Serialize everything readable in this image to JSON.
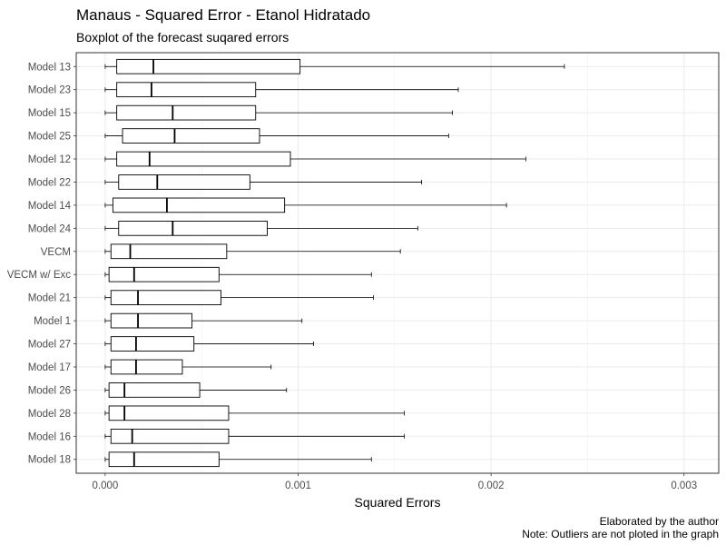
{
  "chart_data": {
    "type": "boxplot",
    "title": "Manaus - Squared Error - Etanol Hidratado",
    "subtitle": "Boxplot of the forecast suqared errors",
    "xlabel": "Squared Errors",
    "ylabel": "",
    "xlim": [
      -0.00015,
      0.00318
    ],
    "x_ticks": [
      0.0,
      0.001,
      0.002,
      0.003
    ],
    "x_tick_labels": [
      "0.000",
      "0.001",
      "0.002",
      "0.003"
    ],
    "grid": true,
    "captions": [
      "Elaborated by the author",
      "Note: Outliers are not ploted in the graph"
    ],
    "series": [
      {
        "label": "Model 13",
        "whisker_low": 0.0,
        "q1": 6e-05,
        "median": 0.00025,
        "q3": 0.00101,
        "whisker_high": 0.00238
      },
      {
        "label": "Model 23",
        "whisker_low": 0.0,
        "q1": 6e-05,
        "median": 0.00024,
        "q3": 0.00078,
        "whisker_high": 0.00183
      },
      {
        "label": "Model 15",
        "whisker_low": 0.0,
        "q1": 6e-05,
        "median": 0.00035,
        "q3": 0.00078,
        "whisker_high": 0.0018
      },
      {
        "label": "Model 25",
        "whisker_low": 0.0,
        "q1": 9e-05,
        "median": 0.00036,
        "q3": 0.0008,
        "whisker_high": 0.00178
      },
      {
        "label": "Model 12",
        "whisker_low": 0.0,
        "q1": 6e-05,
        "median": 0.00023,
        "q3": 0.00096,
        "whisker_high": 0.00218
      },
      {
        "label": "Model 22",
        "whisker_low": 0.0,
        "q1": 7e-05,
        "median": 0.00027,
        "q3": 0.00075,
        "whisker_high": 0.00164
      },
      {
        "label": "Model 14",
        "whisker_low": 0.0,
        "q1": 4e-05,
        "median": 0.00032,
        "q3": 0.00093,
        "whisker_high": 0.00208
      },
      {
        "label": "Model 24",
        "whisker_low": 0.0,
        "q1": 7e-05,
        "median": 0.00035,
        "q3": 0.00084,
        "whisker_high": 0.00162
      },
      {
        "label": "VECM",
        "whisker_low": 0.0,
        "q1": 3e-05,
        "median": 0.00013,
        "q3": 0.00063,
        "whisker_high": 0.00153
      },
      {
        "label": "VECM w/ Exc",
        "whisker_low": 0.0,
        "q1": 2e-05,
        "median": 0.00015,
        "q3": 0.00059,
        "whisker_high": 0.00138
      },
      {
        "label": "Model 21",
        "whisker_low": 0.0,
        "q1": 3e-05,
        "median": 0.00017,
        "q3": 0.0006,
        "whisker_high": 0.00139
      },
      {
        "label": "Model 1",
        "whisker_low": 0.0,
        "q1": 3e-05,
        "median": 0.00017,
        "q3": 0.00045,
        "whisker_high": 0.00102
      },
      {
        "label": "Model 27",
        "whisker_low": 0.0,
        "q1": 3e-05,
        "median": 0.00016,
        "q3": 0.00046,
        "whisker_high": 0.00108
      },
      {
        "label": "Model 17",
        "whisker_low": 0.0,
        "q1": 3e-05,
        "median": 0.00016,
        "q3": 0.0004,
        "whisker_high": 0.00086
      },
      {
        "label": "Model 26",
        "whisker_low": 0.0,
        "q1": 2e-05,
        "median": 0.0001,
        "q3": 0.00049,
        "whisker_high": 0.00094
      },
      {
        "label": "Model 28",
        "whisker_low": 0.0,
        "q1": 2e-05,
        "median": 0.0001,
        "q3": 0.00064,
        "whisker_high": 0.00155
      },
      {
        "label": "Model 16",
        "whisker_low": 0.0,
        "q1": 3e-05,
        "median": 0.00014,
        "q3": 0.00064,
        "whisker_high": 0.00155
      },
      {
        "label": "Model 18",
        "whisker_low": 0.0,
        "q1": 2e-05,
        "median": 0.00015,
        "q3": 0.00059,
        "whisker_high": 0.00138
      }
    ]
  }
}
